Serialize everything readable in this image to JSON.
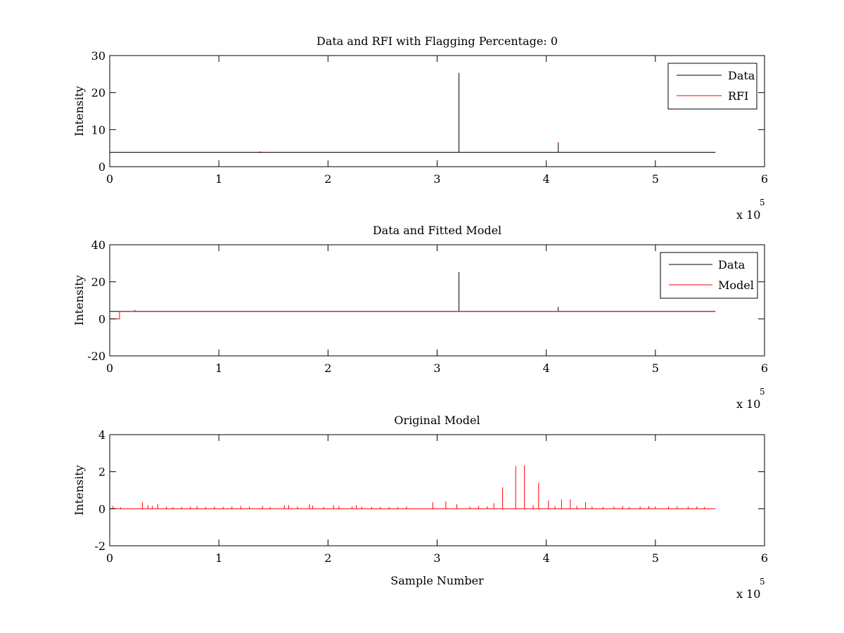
{
  "chart_data": [
    {
      "type": "line",
      "title": "Data and RFI with Flagging Percentage: 0",
      "xlabel": "",
      "ylabel": "Intensity",
      "xlim": [
        0,
        600000
      ],
      "ylim": [
        0,
        30
      ],
      "xticks": [
        0,
        1,
        2,
        3,
        4,
        5,
        6
      ],
      "yticks": [
        0,
        10,
        20,
        30
      ],
      "x_multiplier": "x 10",
      "x_multiplier_exp": "5",
      "legend": {
        "placement": "top-right",
        "entries": [
          "Data",
          "RFI"
        ]
      },
      "series": [
        {
          "name": "Data",
          "color": "#000000",
          "baseline": 3.9,
          "x_end": 555000,
          "spikes": [
            [
              320000,
              25.3
            ],
            [
              411000,
              6.5
            ]
          ]
        },
        {
          "name": "RFI",
          "color": "#ff0000",
          "baseline": null,
          "spikes": [
            [
              138000,
              4.2
            ],
            [
              411000,
              6.6
            ]
          ]
        }
      ]
    },
    {
      "type": "line",
      "title": "Data and Fitted Model",
      "xlabel": "",
      "ylabel": "Intensity",
      "xlim": [
        0,
        600000
      ],
      "ylim": [
        -20,
        40
      ],
      "xticks": [
        0,
        1,
        2,
        3,
        4,
        5,
        6
      ],
      "yticks": [
        -20,
        0,
        20,
        40
      ],
      "x_multiplier": "x 10",
      "x_multiplier_exp": "5",
      "legend": {
        "placement": "top-right",
        "entries": [
          "Data",
          "Model"
        ]
      },
      "series": [
        {
          "name": "Data",
          "color": "#000000",
          "baseline": 4,
          "x_end": 555000,
          "spikes": [
            [
              23000,
              4.8
            ],
            [
              320000,
              25.3
            ],
            [
              411000,
              6.4
            ]
          ]
        },
        {
          "name": "Model",
          "color": "#ff0000",
          "baseline": 4,
          "x_end": 555000,
          "step": {
            "x_start": 0,
            "x_end": 9000,
            "value": 0
          },
          "spikes": []
        }
      ]
    },
    {
      "type": "line",
      "title": "Original Model",
      "xlabel": "Sample Number",
      "ylabel": "Intensity",
      "xlim": [
        0,
        600000
      ],
      "ylim": [
        -2,
        4
      ],
      "xticks": [
        0,
        1,
        2,
        3,
        4,
        5,
        6
      ],
      "yticks": [
        -2,
        0,
        2,
        4
      ],
      "x_multiplier": "x 10",
      "x_multiplier_exp": "5",
      "series": [
        {
          "color": "#ff0000",
          "baseline": 0,
          "x_end": 555000,
          "spikes": [
            [
              3000,
              0.15
            ],
            [
              10000,
              0.08
            ],
            [
              30000,
              0.35
            ],
            [
              35000,
              0.2
            ],
            [
              39000,
              0.15
            ],
            [
              44000,
              0.25
            ],
            [
              52000,
              0.12
            ],
            [
              58000,
              0.1
            ],
            [
              66000,
              0.1
            ],
            [
              74000,
              0.12
            ],
            [
              80000,
              0.15
            ],
            [
              88000,
              0.1
            ],
            [
              96000,
              0.12
            ],
            [
              104000,
              0.1
            ],
            [
              112000,
              0.12
            ],
            [
              120000,
              0.15
            ],
            [
              128000,
              0.12
            ],
            [
              140000,
              0.15
            ],
            [
              147000,
              0.1
            ],
            [
              160000,
              0.2
            ],
            [
              164000,
              0.2
            ],
            [
              172000,
              0.12
            ],
            [
              183000,
              0.25
            ],
            [
              186000,
              0.18
            ],
            [
              196000,
              0.1
            ],
            [
              205000,
              0.2
            ],
            [
              210000,
              0.15
            ],
            [
              222000,
              0.12
            ],
            [
              226000,
              0.2
            ],
            [
              231000,
              0.12
            ],
            [
              240000,
              0.1
            ],
            [
              248000,
              0.1
            ],
            [
              256000,
              0.1
            ],
            [
              264000,
              0.1
            ],
            [
              272000,
              0.12
            ],
            [
              296000,
              0.35
            ],
            [
              308000,
              0.4
            ],
            [
              318000,
              0.25
            ],
            [
              330000,
              0.12
            ],
            [
              338000,
              0.15
            ],
            [
              346000,
              0.12
            ],
            [
              352000,
              0.3
            ],
            [
              360000,
              1.15
            ],
            [
              372000,
              2.3
            ],
            [
              380000,
              2.35
            ],
            [
              388000,
              0.2
            ],
            [
              393000,
              1.4
            ],
            [
              402000,
              0.45
            ],
            [
              408000,
              0.15
            ],
            [
              414000,
              0.5
            ],
            [
              422000,
              0.5
            ],
            [
              428000,
              0.15
            ],
            [
              436000,
              0.35
            ],
            [
              442000,
              0.12
            ],
            [
              452000,
              0.1
            ],
            [
              462000,
              0.12
            ],
            [
              470000,
              0.15
            ],
            [
              476000,
              0.1
            ],
            [
              486000,
              0.12
            ],
            [
              494000,
              0.15
            ],
            [
              500000,
              0.12
            ],
            [
              512000,
              0.12
            ],
            [
              520000,
              0.12
            ],
            [
              530000,
              0.12
            ],
            [
              538000,
              0.12
            ],
            [
              545000,
              0.1
            ]
          ]
        }
      ]
    }
  ]
}
